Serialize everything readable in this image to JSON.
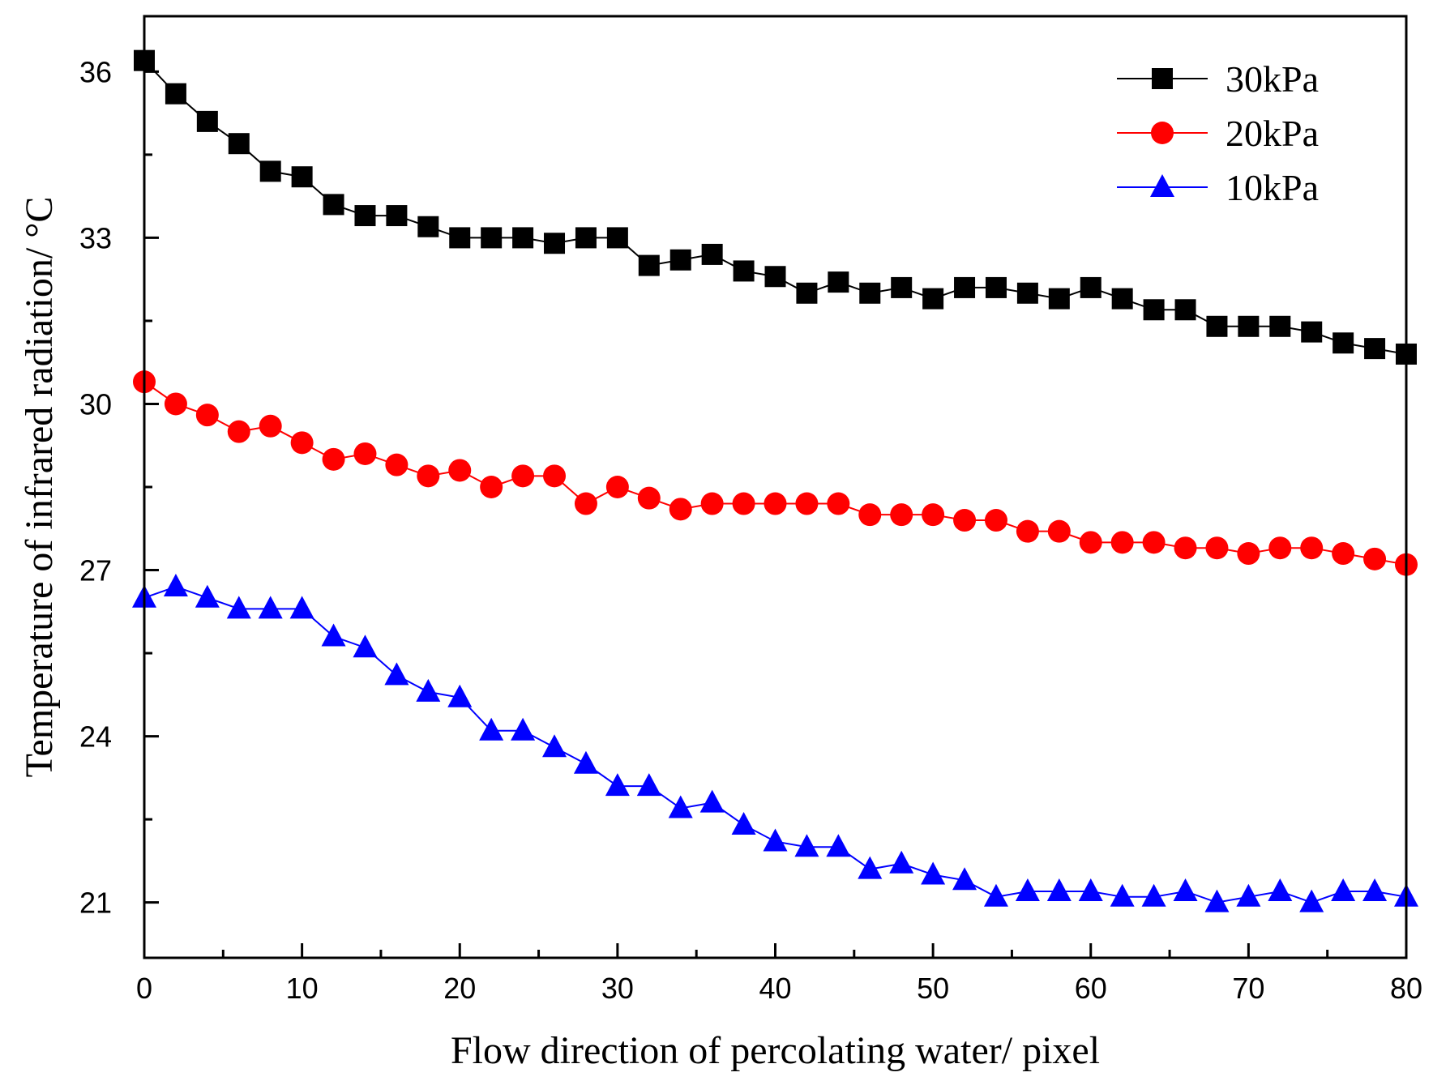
{
  "chart_data": {
    "type": "line",
    "xlabel": "Flow direction of percolating water/ pixel",
    "ylabel": "Temperature of infrared radiation/ °C",
    "xlim": [
      0,
      80
    ],
    "ylim": [
      20,
      37
    ],
    "xticks": [
      0,
      10,
      20,
      30,
      40,
      50,
      60,
      70,
      80
    ],
    "yticks": [
      21,
      24,
      27,
      30,
      33,
      36
    ],
    "legend_position": "top-right",
    "x": [
      0,
      2,
      4,
      6,
      8,
      10,
      12,
      14,
      16,
      18,
      20,
      22,
      24,
      26,
      28,
      30,
      32,
      34,
      36,
      38,
      40,
      42,
      44,
      46,
      48,
      50,
      52,
      54,
      56,
      58,
      60,
      62,
      64,
      66,
      68,
      70,
      72,
      74,
      76,
      78,
      80
    ],
    "series": [
      {
        "name": "30kPa",
        "color": "#000000",
        "marker": "square",
        "values": [
          36.2,
          35.6,
          35.1,
          34.7,
          34.2,
          34.1,
          33.6,
          33.4,
          33.4,
          33.2,
          33.0,
          33.0,
          33.0,
          32.9,
          33.0,
          33.0,
          32.5,
          32.6,
          32.7,
          32.4,
          32.3,
          32.0,
          32.2,
          32.0,
          32.1,
          31.9,
          32.1,
          32.1,
          32.0,
          31.9,
          32.1,
          31.9,
          31.7,
          31.7,
          31.4,
          31.4,
          31.4,
          31.3,
          31.1,
          31.0,
          30.9
        ]
      },
      {
        "name": "20kPa",
        "color": "#ff0000",
        "marker": "circle",
        "values": [
          30.4,
          30.0,
          29.8,
          29.5,
          29.6,
          29.3,
          29.0,
          29.1,
          28.9,
          28.7,
          28.8,
          28.5,
          28.7,
          28.7,
          28.2,
          28.5,
          28.3,
          28.1,
          28.2,
          28.2,
          28.2,
          28.2,
          28.2,
          28.0,
          28.0,
          28.0,
          27.9,
          27.9,
          27.7,
          27.7,
          27.5,
          27.5,
          27.5,
          27.4,
          27.4,
          27.3,
          27.4,
          27.4,
          27.3,
          27.2,
          27.1
        ]
      },
      {
        "name": "10kPa",
        "color": "#0000ff",
        "marker": "triangle",
        "values": [
          26.5,
          26.7,
          26.5,
          26.3,
          26.3,
          26.3,
          25.8,
          25.6,
          25.1,
          24.8,
          24.7,
          24.1,
          24.1,
          23.8,
          23.5,
          23.1,
          23.1,
          22.7,
          22.8,
          22.4,
          22.1,
          22.0,
          22.0,
          21.6,
          21.7,
          21.5,
          21.4,
          21.1,
          21.2,
          21.2,
          21.2,
          21.1,
          21.1,
          21.2,
          21.0,
          21.1,
          21.2,
          21.0,
          21.2,
          21.2,
          21.1
        ]
      }
    ]
  }
}
